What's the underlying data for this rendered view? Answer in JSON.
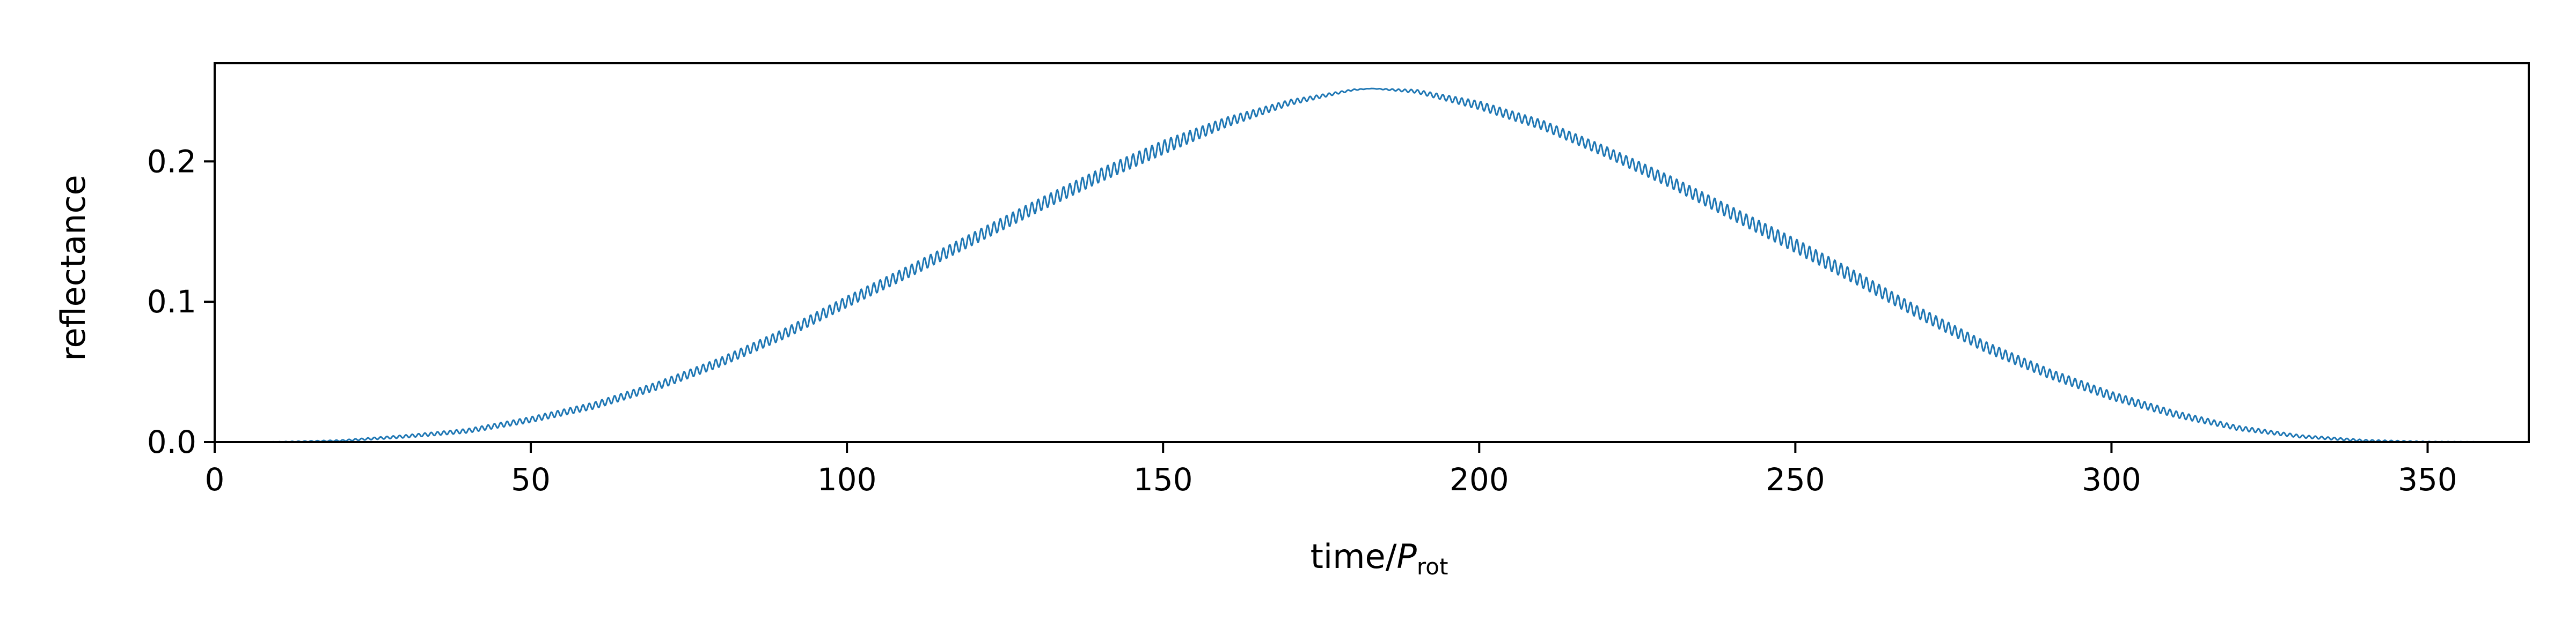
{
  "chart_data": {
    "type": "line",
    "title": "",
    "xlabel": "time/",
    "xlabel_var": "P",
    "xlabel_sub": "rot",
    "ylabel": "reflectance",
    "xlim": [
      0,
      366
    ],
    "ylim": [
      0,
      0.27
    ],
    "xticks": [
      0,
      50,
      100,
      150,
      200,
      250,
      300,
      350
    ],
    "xtick_labels": [
      "0",
      "50",
      "100",
      "150",
      "200",
      "250",
      "300",
      "350"
    ],
    "yticks": [
      0.0,
      0.1,
      0.2
    ],
    "ytick_labels": [
      "0.0",
      "0.1",
      "0.2"
    ],
    "grid": false,
    "series": [
      {
        "color": "#1f77b4",
        "x_start": 0,
        "x_end": 366,
        "oscillation_period": 1,
        "envelope_points": [
          [
            0,
            0.0
          ],
          [
            10,
            0.0
          ],
          [
            20,
            0.001
          ],
          [
            30,
            0.004
          ],
          [
            40,
            0.008
          ],
          [
            50,
            0.016
          ],
          [
            60,
            0.026
          ],
          [
            70,
            0.04
          ],
          [
            80,
            0.057
          ],
          [
            90,
            0.077
          ],
          [
            100,
            0.1
          ],
          [
            110,
            0.122
          ],
          [
            120,
            0.145
          ],
          [
            130,
            0.168
          ],
          [
            140,
            0.19
          ],
          [
            150,
            0.21
          ],
          [
            160,
            0.228
          ],
          [
            170,
            0.242
          ],
          [
            180,
            0.251
          ],
          [
            183,
            0.252
          ],
          [
            190,
            0.25
          ],
          [
            200,
            0.24
          ],
          [
            210,
            0.226
          ],
          [
            220,
            0.207
          ],
          [
            230,
            0.186
          ],
          [
            240,
            0.163
          ],
          [
            250,
            0.14
          ],
          [
            260,
            0.116
          ],
          [
            270,
            0.091
          ],
          [
            280,
            0.068
          ],
          [
            290,
            0.049
          ],
          [
            300,
            0.033
          ],
          [
            310,
            0.02
          ],
          [
            320,
            0.01
          ],
          [
            330,
            0.004
          ],
          [
            340,
            0.001
          ],
          [
            350,
            0.0
          ],
          [
            366,
            0.0
          ]
        ],
        "amplitude_points": [
          [
            0,
            0.0
          ],
          [
            20,
            0.0005
          ],
          [
            50,
            0.002
          ],
          [
            100,
            0.004
          ],
          [
            150,
            0.005
          ],
          [
            183,
            0.0
          ],
          [
            200,
            0.003
          ],
          [
            250,
            0.005
          ],
          [
            300,
            0.003
          ],
          [
            330,
            0.001
          ],
          [
            366,
            0.0
          ]
        ]
      }
    ]
  }
}
